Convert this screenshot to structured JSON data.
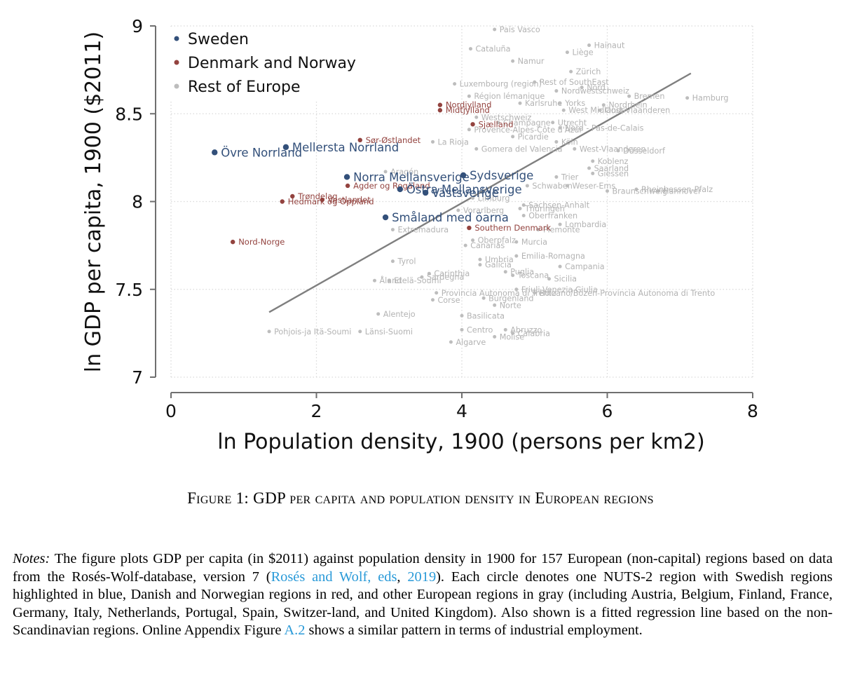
{
  "figure": {
    "caption_label": "Figure 1:",
    "caption_title": "GDP per capita and population density in European regions",
    "notes": {
      "lead": "Notes:",
      "text_1": " The figure plots GDP per capita (in $2011) against population density in 1900 for 157 European (non-capital) regions based on data from the Rosés-Wolf-database, version 7 (",
      "cite_1": "Rosés and Wolf, eds",
      "sep": ", ",
      "cite_2": "2019",
      "text_2": "). Each circle denotes one NUTS-2 region with Swedish regions highlighted in blue, Danish and Norwegian regions in red, and other European regions in gray (including Austria, Belgium, Finland, France, Germany, Italy, Netherlands, Portugal, Spain, Switzer-land, and United Kingdom). Also shown is a fitted regression line based on the non-Scandinavian regions. Online Appendix Figure ",
      "cite_3": "A.2",
      "text_3": " shows a similar pattern in terms of industrial employment."
    }
  },
  "chart_data": {
    "type": "scatter",
    "xlabel": "ln Population density, 1900 (persons per km2)",
    "ylabel": "ln GDP per capita, 1900 ($2011)",
    "xlim": [
      0,
      8
    ],
    "ylim": [
      7,
      9
    ],
    "xticks": [
      "0",
      "2",
      "4",
      "6",
      "8"
    ],
    "yticks": [
      "7",
      "7.5",
      "8",
      "8.5",
      "9"
    ],
    "grid": true,
    "colors": {
      "sweden": "#33507a",
      "denmark_norway": "#93433f",
      "rest": "#bdbdbd",
      "rest_label": "#b3b3b3",
      "fit": "#7f7f7f",
      "axis": "#6f6f6f"
    },
    "legend": [
      {
        "name": "Sweden",
        "key": "sweden"
      },
      {
        "name": "Denmark and Norway",
        "key": "denmark_norway"
      },
      {
        "name": "Rest of Europe",
        "key": "rest"
      }
    ],
    "fit_line": {
      "x": [
        1.35,
        7.15
      ],
      "y": [
        7.37,
        8.73
      ]
    },
    "series": [
      {
        "name": "Sweden",
        "key": "sweden",
        "points": [
          {
            "label": "Övre Norrland",
            "x": 0.6,
            "y": 8.28
          },
          {
            "label": "Mellersta Norrland",
            "x": 1.58,
            "y": 8.31
          },
          {
            "label": "Norra Mellansverige",
            "x": 2.42,
            "y": 8.14
          },
          {
            "label": "Sydsverige",
            "x": 4.02,
            "y": 8.15
          },
          {
            "label": "Östra Mellansverige",
            "x": 3.15,
            "y": 8.07
          },
          {
            "label": "Västsverige",
            "x": 3.5,
            "y": 8.05
          },
          {
            "label": "Småland med öarna",
            "x": 2.95,
            "y": 7.91
          }
        ]
      },
      {
        "name": "Denmark and Norway",
        "key": "denmark_norway",
        "points": [
          {
            "label": "Sør-Østlandet",
            "x": 2.6,
            "y": 8.35
          },
          {
            "label": "Agder og Rogaland",
            "x": 2.43,
            "y": 8.09
          },
          {
            "label": "Trøndelag",
            "x": 1.67,
            "y": 8.03
          },
          {
            "label": "Vestlandet",
            "x": 2.08,
            "y": 8.01
          },
          {
            "label": "Hedmark og Oppland",
            "x": 1.53,
            "y": 8.0
          },
          {
            "label": "Nord-Norge",
            "x": 0.85,
            "y": 7.77
          },
          {
            "label": "Nordjylland",
            "x": 3.7,
            "y": 8.55
          },
          {
            "label": "Midtjylland",
            "x": 3.7,
            "y": 8.52
          },
          {
            "label": "Sjælland",
            "x": 4.15,
            "y": 8.44
          },
          {
            "label": "Southern Denmark",
            "x": 4.1,
            "y": 7.85
          }
        ]
      },
      {
        "name": "Rest of Europe",
        "key": "rest",
        "points": [
          {
            "label": "País Vasco",
            "x": 4.45,
            "y": 8.98
          },
          {
            "label": "Hainaut",
            "x": 5.75,
            "y": 8.89
          },
          {
            "label": "Cataluña",
            "x": 4.12,
            "y": 8.87
          },
          {
            "label": "Liège",
            "x": 5.45,
            "y": 8.85
          },
          {
            "label": "Namur",
            "x": 4.7,
            "y": 8.8
          },
          {
            "label": "Zürich",
            "x": 5.5,
            "y": 8.74
          },
          {
            "label": "Luxembourg (region)",
            "x": 3.9,
            "y": 8.67
          },
          {
            "label": "Rest of SouthEast",
            "x": 5.0,
            "y": 8.68
          },
          {
            "label": "Nord",
            "x": 5.65,
            "y": 8.65
          },
          {
            "label": "Nordwestschweiz",
            "x": 5.3,
            "y": 8.63
          },
          {
            "label": "Région lémanique",
            "x": 4.1,
            "y": 8.6
          },
          {
            "label": "Bremen",
            "x": 6.3,
            "y": 8.6
          },
          {
            "label": "Hamburg",
            "x": 7.1,
            "y": 8.59
          },
          {
            "label": "Karlsruhe",
            "x": 4.8,
            "y": 8.56
          },
          {
            "label": "Yorks",
            "x": 5.35,
            "y": 8.56
          },
          {
            "label": "Nordrhein",
            "x": 5.95,
            "y": 8.55
          },
          {
            "label": "Westschweiz",
            "x": 4.2,
            "y": 8.48
          },
          {
            "label": "West Midlands",
            "x": 5.4,
            "y": 8.52
          },
          {
            "label": "Oost-Vlaanderen",
            "x": 5.9,
            "y": 8.52
          },
          {
            "label": "Utrecht",
            "x": 5.25,
            "y": 8.45
          },
          {
            "label": "Champagne",
            "x": 4.5,
            "y": 8.45
          },
          {
            "label": "Provence-Alpes-Côte d'Azur",
            "x": 4.1,
            "y": 8.41
          },
          {
            "label": "Nord - Pas-de-Calais",
            "x": 5.35,
            "y": 8.42
          },
          {
            "label": "Picardie",
            "x": 4.7,
            "y": 8.37
          },
          {
            "label": "La Rioja",
            "x": 3.6,
            "y": 8.34
          },
          {
            "label": "Köln",
            "x": 5.3,
            "y": 8.34
          },
          {
            "label": "Gomera del Valencia",
            "x": 4.2,
            "y": 8.3
          },
          {
            "label": "West-Vlaanderen",
            "x": 5.55,
            "y": 8.3
          },
          {
            "label": "Düsseldorf",
            "x": 6.15,
            "y": 8.29
          },
          {
            "label": "Koblenz",
            "x": 5.8,
            "y": 8.23
          },
          {
            "label": "Saarland",
            "x": 5.75,
            "y": 8.19
          },
          {
            "label": "Giessen",
            "x": 5.8,
            "y": 8.16
          },
          {
            "label": "Aragón",
            "x": 2.95,
            "y": 8.17
          },
          {
            "label": "Trier",
            "x": 5.3,
            "y": 8.14
          },
          {
            "label": "Schwaben",
            "x": 4.9,
            "y": 8.09
          },
          {
            "label": "Rheinhessen-Pfalz",
            "x": 6.4,
            "y": 8.07
          },
          {
            "label": "Weser-Ems",
            "x": 5.45,
            "y": 8.09
          },
          {
            "label": "Hannover",
            "x": 6.7,
            "y": 8.06
          },
          {
            "label": "Braunschweig",
            "x": 6.0,
            "y": 8.06
          },
          {
            "label": "Limburg",
            "x": 4.15,
            "y": 8.02
          },
          {
            "label": "Sachsen-Anhalt",
            "x": 4.85,
            "y": 7.98
          },
          {
            "label": "Thüringen",
            "x": 4.8,
            "y": 7.96
          },
          {
            "label": "Vorarlberg",
            "x": 3.95,
            "y": 7.95
          },
          {
            "label": "Oberfranken",
            "x": 4.85,
            "y": 7.92
          },
          {
            "label": "Lombardia",
            "x": 5.35,
            "y": 7.87
          },
          {
            "label": "Piemonte",
            "x": 5.05,
            "y": 7.84
          },
          {
            "label": "Extremadura",
            "x": 3.05,
            "y": 7.84
          },
          {
            "label": "Oberpfalz",
            "x": 4.15,
            "y": 7.78
          },
          {
            "label": "Murcia",
            "x": 4.75,
            "y": 7.77
          },
          {
            "label": "Canarias",
            "x": 4.05,
            "y": 7.75
          },
          {
            "label": "Tyrol",
            "x": 3.05,
            "y": 7.66
          },
          {
            "label": "Emilia-Romagna",
            "x": 4.75,
            "y": 7.69
          },
          {
            "label": "Umbria",
            "x": 4.25,
            "y": 7.67
          },
          {
            "label": "Galicia",
            "x": 4.25,
            "y": 7.64
          },
          {
            "label": "Campania",
            "x": 5.35,
            "y": 7.63
          },
          {
            "label": "Carinthia",
            "x": 3.55,
            "y": 7.59
          },
          {
            "label": "Puglia",
            "x": 4.6,
            "y": 7.6
          },
          {
            "label": "Toscana",
            "x": 4.7,
            "y": 7.58
          },
          {
            "label": "Sardegna",
            "x": 3.45,
            "y": 7.57
          },
          {
            "label": "Sicilia",
            "x": 5.2,
            "y": 7.56
          },
          {
            "label": "Åland",
            "x": 2.8,
            "y": 7.55
          },
          {
            "label": "Etelä-Soumi",
            "x": 3.0,
            "y": 7.55
          },
          {
            "label": "Friuli-Venezia Giulia",
            "x": 4.75,
            "y": 7.5
          },
          {
            "label": "Provincia Autonoma di Trento",
            "x": 3.65,
            "y": 7.48
          },
          {
            "label": "Bolzano/Bozen-Provincia Autonoma di Trento",
            "x": 5.0,
            "y": 7.48
          },
          {
            "label": "Corse",
            "x": 3.6,
            "y": 7.44
          },
          {
            "label": "Burgenland",
            "x": 4.3,
            "y": 7.45
          },
          {
            "label": "Norte",
            "x": 4.45,
            "y": 7.41
          },
          {
            "label": "Alentejo",
            "x": 2.85,
            "y": 7.36
          },
          {
            "label": "Basilicata",
            "x": 4.0,
            "y": 7.35
          },
          {
            "label": "Pohjois-ja Itä-Soumi",
            "x": 1.35,
            "y": 7.26
          },
          {
            "label": "Länsi-Suomi",
            "x": 2.6,
            "y": 7.26
          },
          {
            "label": "Centro",
            "x": 4.0,
            "y": 7.27
          },
          {
            "label": "Abruzzo",
            "x": 4.6,
            "y": 7.27
          },
          {
            "label": "Calabria",
            "x": 4.7,
            "y": 7.25
          },
          {
            "label": "Molise",
            "x": 4.45,
            "y": 7.23
          },
          {
            "label": "Algarve",
            "x": 3.85,
            "y": 7.2
          }
        ]
      }
    ]
  }
}
